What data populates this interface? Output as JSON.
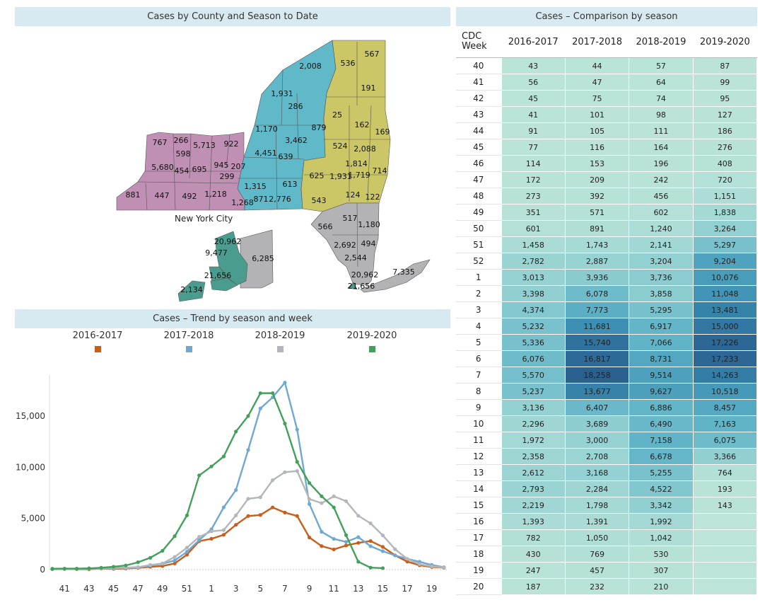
{
  "map_panel": {
    "title": "Cases by County and Season to Date",
    "nyc_label": "New York City",
    "colors": {
      "western": "#bf8fb4",
      "central": "#5fb9c9",
      "eastern": "#cbc666",
      "metro": "#b3b3b6",
      "nyc": "#4a9d8e"
    },
    "county_labels": [
      "2,008",
      "536",
      "567",
      "191",
      "1,931",
      "286",
      "25",
      "162",
      "169",
      "1,170",
      "3,462",
      "879",
      "524",
      "2,088",
      "767",
      "266",
      "5,713",
      "922",
      "598",
      "4,451",
      "639",
      "1,814",
      "5,680",
      "454",
      "695",
      "945",
      "207",
      "625",
      "1,931",
      "1,719",
      "714",
      "299",
      "1,315",
      "613",
      "881",
      "447",
      "492",
      "1,218",
      "1,268",
      "871",
      "2,776",
      "124",
      "122",
      "543",
      "517",
      "566",
      "1,180",
      "2,692",
      "494",
      "2,544",
      "20,962",
      "21,656",
      "7,335"
    ],
    "nyc_county_labels": [
      "20,962",
      "9,477",
      "6,285",
      "21,656",
      "2,134"
    ]
  },
  "trend_panel": {
    "title": "Cases – Trend by season and week"
  },
  "table_panel": {
    "title": "Cases  – Comparison by season",
    "week_header": "CDC Week",
    "seasons": [
      "2016-2017",
      "2017-2018",
      "2018-2019",
      "2019-2020"
    ],
    "rows": [
      {
        "week": "40",
        "v": [
          "43",
          "44",
          "57",
          "87"
        ]
      },
      {
        "week": "41",
        "v": [
          "56",
          "47",
          "64",
          "99"
        ]
      },
      {
        "week": "42",
        "v": [
          "45",
          "75",
          "74",
          "95"
        ]
      },
      {
        "week": "43",
        "v": [
          "41",
          "101",
          "98",
          "127"
        ]
      },
      {
        "week": "44",
        "v": [
          "91",
          "105",
          "111",
          "186"
        ]
      },
      {
        "week": "45",
        "v": [
          "77",
          "116",
          "164",
          "276"
        ]
      },
      {
        "week": "46",
        "v": [
          "114",
          "153",
          "196",
          "408"
        ]
      },
      {
        "week": "47",
        "v": [
          "172",
          "209",
          "242",
          "720"
        ]
      },
      {
        "week": "48",
        "v": [
          "273",
          "392",
          "456",
          "1,151"
        ]
      },
      {
        "week": "49",
        "v": [
          "351",
          "571",
          "602",
          "1,838"
        ]
      },
      {
        "week": "50",
        "v": [
          "601",
          "891",
          "1,240",
          "3,264"
        ]
      },
      {
        "week": "51",
        "v": [
          "1,458",
          "1,743",
          "2,141",
          "5,297"
        ]
      },
      {
        "week": "52",
        "v": [
          "2,782",
          "2,887",
          "3,204",
          "9,204"
        ]
      },
      {
        "week": "1",
        "v": [
          "3,013",
          "3,936",
          "3,736",
          "10,076"
        ]
      },
      {
        "week": "2",
        "v": [
          "3,398",
          "6,078",
          "3,858",
          "11,048"
        ]
      },
      {
        "week": "3",
        "v": [
          "4,374",
          "7,773",
          "5,295",
          "13,481"
        ]
      },
      {
        "week": "4",
        "v": [
          "5,232",
          "11,681",
          "6,917",
          "15,000"
        ]
      },
      {
        "week": "5",
        "v": [
          "5,336",
          "15,740",
          "7,066",
          "17,226"
        ]
      },
      {
        "week": "6",
        "v": [
          "6,076",
          "16,817",
          "8,731",
          "17,233"
        ]
      },
      {
        "week": "7",
        "v": [
          "5,570",
          "18,258",
          "9,514",
          "14,263"
        ]
      },
      {
        "week": "8",
        "v": [
          "5,237",
          "13,677",
          "9,627",
          "10,518"
        ]
      },
      {
        "week": "9",
        "v": [
          "3,136",
          "6,407",
          "6,886",
          "8,457"
        ]
      },
      {
        "week": "10",
        "v": [
          "2,296",
          "3,689",
          "6,490",
          "7,163"
        ]
      },
      {
        "week": "11",
        "v": [
          "1,972",
          "3,000",
          "7,158",
          "6,075"
        ]
      },
      {
        "week": "12",
        "v": [
          "2,358",
          "2,708",
          "6,678",
          "3,366"
        ]
      },
      {
        "week": "13",
        "v": [
          "2,612",
          "3,168",
          "5,255",
          "764"
        ]
      },
      {
        "week": "14",
        "v": [
          "2,793",
          "2,284",
          "4,522",
          "193"
        ]
      },
      {
        "week": "15",
        "v": [
          "2,219",
          "1,798",
          "3,342",
          "143"
        ]
      },
      {
        "week": "16",
        "v": [
          "1,393",
          "1,391",
          "1,992",
          ""
        ]
      },
      {
        "week": "17",
        "v": [
          "782",
          "1,050",
          "1,042",
          ""
        ]
      },
      {
        "week": "18",
        "v": [
          "430",
          "769",
          "530",
          ""
        ]
      },
      {
        "week": "19",
        "v": [
          "247",
          "457",
          "307",
          ""
        ]
      },
      {
        "week": "20",
        "v": [
          "187",
          "232",
          "210",
          ""
        ]
      }
    ]
  },
  "chart_data": {
    "type": "line",
    "title": "Cases – Trend by season and week",
    "xlabel": "CDC Week",
    "ylabel": "Cases",
    "categories": [
      "40",
      "41",
      "42",
      "43",
      "44",
      "45",
      "46",
      "47",
      "48",
      "49",
      "50",
      "51",
      "52",
      "1",
      "2",
      "3",
      "4",
      "5",
      "6",
      "7",
      "8",
      "9",
      "10",
      "11",
      "12",
      "13",
      "14",
      "15",
      "16",
      "17",
      "18",
      "19",
      "20"
    ],
    "x_tick_labels": [
      "41",
      "43",
      "45",
      "47",
      "49",
      "51",
      "1",
      "3",
      "5",
      "7",
      "9",
      "11",
      "13",
      "15",
      "17",
      "19"
    ],
    "y_ticks": [
      0,
      5000,
      10000,
      15000
    ],
    "y_tick_labels": [
      "0",
      "5,000",
      "10,000",
      "15,000"
    ],
    "ylim": [
      0,
      19000
    ],
    "legend_position": "top",
    "series": [
      {
        "name": "2016-2017",
        "color": "#c95d1a",
        "values": [
          43,
          56,
          45,
          41,
          91,
          77,
          114,
          172,
          273,
          351,
          601,
          1458,
          2782,
          3013,
          3398,
          4374,
          5232,
          5336,
          6076,
          5570,
          5237,
          3136,
          2296,
          1972,
          2358,
          2612,
          2793,
          2219,
          1393,
          782,
          430,
          247,
          187
        ]
      },
      {
        "name": "2017-2018",
        "color": "#6fa8d2",
        "values": [
          44,
          47,
          75,
          101,
          105,
          116,
          153,
          209,
          392,
          571,
          891,
          1743,
          2887,
          3936,
          6078,
          7773,
          11681,
          15740,
          16817,
          18258,
          13677,
          6407,
          3689,
          3000,
          2708,
          3168,
          2284,
          1798,
          1391,
          1050,
          769,
          457,
          232
        ]
      },
      {
        "name": "2018-2019",
        "color": "#b3b6bb",
        "values": [
          57,
          64,
          74,
          98,
          111,
          164,
          196,
          242,
          456,
          602,
          1240,
          2141,
          3204,
          3736,
          3858,
          5295,
          6917,
          7066,
          8731,
          9514,
          9627,
          6886,
          6490,
          7158,
          6678,
          5255,
          4522,
          3342,
          1992,
          1042,
          530,
          307,
          210
        ]
      },
      {
        "name": "2019-2020",
        "color": "#43a05a",
        "values": [
          87,
          99,
          95,
          127,
          186,
          276,
          408,
          720,
          1151,
          1838,
          3264,
          5297,
          9204,
          10076,
          11048,
          13481,
          15000,
          17226,
          17233,
          14263,
          10518,
          8457,
          7163,
          6075,
          3366,
          764,
          193,
          143,
          null,
          null,
          null,
          null,
          null
        ]
      }
    ]
  }
}
